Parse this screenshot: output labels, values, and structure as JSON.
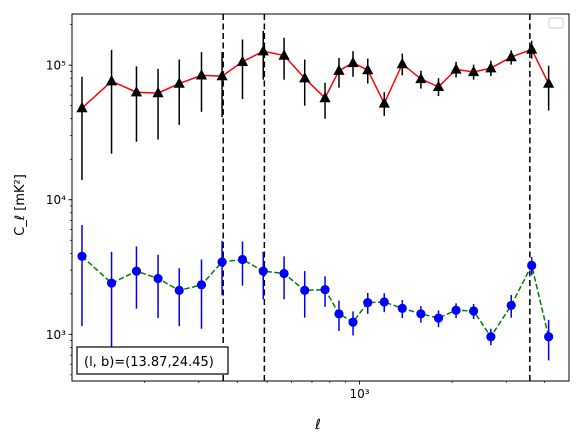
{
  "chart_data": {
    "type": "line",
    "x_scale": "log",
    "y_scale": "log",
    "xlim": [
      116,
      4800
    ],
    "ylim": [
      450,
      240000
    ],
    "xlabel": "ℓ",
    "ylabel": "C_ℓ [mK²]",
    "legend": {
      "placement": "top-right",
      "entries": []
    },
    "annotation": "(l, b)=(13.87,24.45)",
    "x_tick_labels": [
      {
        "value": 1000,
        "label": "10³"
      }
    ],
    "y_tick_labels": [
      {
        "value": 1000,
        "label": "10³"
      },
      {
        "value": 10000,
        "label": "10⁴"
      },
      {
        "value": 100000,
        "label": "10⁵"
      }
    ],
    "vlines": [
      360,
      490,
      3580
    ],
    "series": [
      {
        "color": "#ff0000",
        "marker": "triangle",
        "marker_color": "#000000",
        "line_style": "solid",
        "points": [
          {
            "x": 125,
            "y": 48000,
            "lo": 14000,
            "hi": 82000
          },
          {
            "x": 156,
            "y": 76000,
            "lo": 22000,
            "hi": 130000
          },
          {
            "x": 188,
            "y": 63000,
            "lo": 27000,
            "hi": 98000
          },
          {
            "x": 221,
            "y": 62000,
            "lo": 28000,
            "hi": 94000
          },
          {
            "x": 259,
            "y": 73000,
            "lo": 36000,
            "hi": 110000
          },
          {
            "x": 306,
            "y": 84000,
            "lo": 45000,
            "hi": 125000
          },
          {
            "x": 357,
            "y": 83000,
            "lo": 41000,
            "hi": 125000
          },
          {
            "x": 416,
            "y": 106000,
            "lo": 56000,
            "hi": 155000
          },
          {
            "x": 486,
            "y": 127000,
            "lo": 78000,
            "hi": 180000
          },
          {
            "x": 568,
            "y": 118000,
            "lo": 78000,
            "hi": 160000
          },
          {
            "x": 663,
            "y": 80000,
            "lo": 50000,
            "hi": 110000
          },
          {
            "x": 772,
            "y": 57000,
            "lo": 40000,
            "hi": 74000
          },
          {
            "x": 857,
            "y": 91000,
            "lo": 68000,
            "hi": 113000
          },
          {
            "x": 952,
            "y": 104000,
            "lo": 82000,
            "hi": 127000
          },
          {
            "x": 1063,
            "y": 92000,
            "lo": 73000,
            "hi": 112000
          },
          {
            "x": 1203,
            "y": 52000,
            "lo": 42000,
            "hi": 63000
          },
          {
            "x": 1377,
            "y": 102000,
            "lo": 84000,
            "hi": 122000
          },
          {
            "x": 1583,
            "y": 79000,
            "lo": 67000,
            "hi": 91000
          },
          {
            "x": 1806,
            "y": 69000,
            "lo": 59000,
            "hi": 80000
          },
          {
            "x": 2060,
            "y": 93000,
            "lo": 81000,
            "hi": 106000
          },
          {
            "x": 2349,
            "y": 89000,
            "lo": 78000,
            "hi": 101000
          },
          {
            "x": 2673,
            "y": 95000,
            "lo": 83000,
            "hi": 108000
          },
          {
            "x": 3114,
            "y": 115000,
            "lo": 101000,
            "hi": 129000
          },
          {
            "x": 3630,
            "y": 131000,
            "lo": 112000,
            "hi": 152000
          },
          {
            "x": 4121,
            "y": 73000,
            "lo": 46000,
            "hi": 99000
          }
        ]
      },
      {
        "color": "#008000",
        "marker": "circle",
        "marker_color": "#0000ff",
        "line_style": "dashed",
        "points": [
          {
            "x": 125,
            "y": 3800,
            "lo": 1150,
            "hi": 6500
          },
          {
            "x": 156,
            "y": 2400,
            "lo": 750,
            "hi": 4100
          },
          {
            "x": 188,
            "y": 2950,
            "lo": 1550,
            "hi": 4500
          },
          {
            "x": 221,
            "y": 2600,
            "lo": 1320,
            "hi": 3900
          },
          {
            "x": 259,
            "y": 2120,
            "lo": 1150,
            "hi": 3100
          },
          {
            "x": 306,
            "y": 2330,
            "lo": 1100,
            "hi": 3600
          },
          {
            "x": 357,
            "y": 3450,
            "lo": 1950,
            "hi": 4950
          },
          {
            "x": 416,
            "y": 3600,
            "lo": 2300,
            "hi": 4900
          },
          {
            "x": 486,
            "y": 2950,
            "lo": 1820,
            "hi": 4100
          },
          {
            "x": 568,
            "y": 2830,
            "lo": 1820,
            "hi": 3800
          },
          {
            "x": 663,
            "y": 2120,
            "lo": 1330,
            "hi": 2950
          },
          {
            "x": 772,
            "y": 2150,
            "lo": 1600,
            "hi": 2700
          },
          {
            "x": 857,
            "y": 1420,
            "lo": 1060,
            "hi": 1780
          },
          {
            "x": 952,
            "y": 1230,
            "lo": 980,
            "hi": 1480
          },
          {
            "x": 1063,
            "y": 1720,
            "lo": 1420,
            "hi": 2030
          },
          {
            "x": 1203,
            "y": 1740,
            "lo": 1460,
            "hi": 2020
          },
          {
            "x": 1377,
            "y": 1560,
            "lo": 1320,
            "hi": 1800
          },
          {
            "x": 1583,
            "y": 1420,
            "lo": 1220,
            "hi": 1620
          },
          {
            "x": 1806,
            "y": 1320,
            "lo": 1130,
            "hi": 1510
          },
          {
            "x": 2060,
            "y": 1510,
            "lo": 1320,
            "hi": 1700
          },
          {
            "x": 2349,
            "y": 1490,
            "lo": 1300,
            "hi": 1680
          },
          {
            "x": 2673,
            "y": 960,
            "lo": 830,
            "hi": 1100
          },
          {
            "x": 3114,
            "y": 1640,
            "lo": 1330,
            "hi": 1960
          },
          {
            "x": 3630,
            "y": 3250,
            "lo": 2750,
            "hi": 3750
          },
          {
            "x": 4121,
            "y": 960,
            "lo": 640,
            "hi": 1280
          }
        ]
      }
    ]
  }
}
